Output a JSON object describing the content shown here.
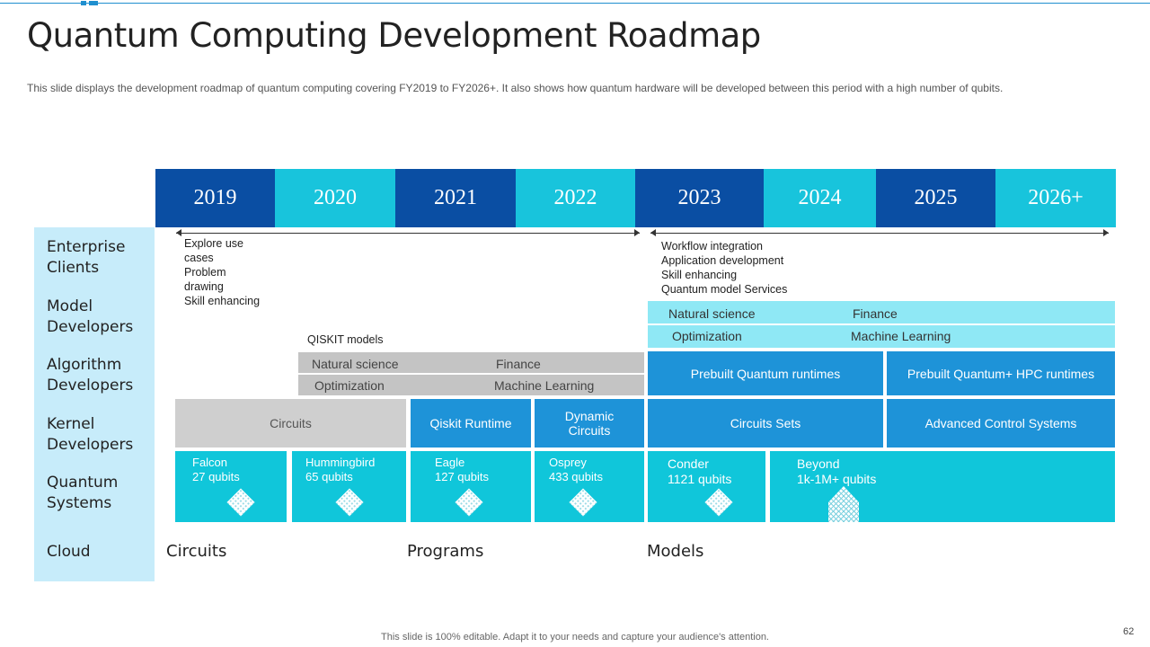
{
  "title": "Quantum Computing Development Roadmap",
  "subtitle": "This slide displays the development  roadmap of quantum computing covering FY2019 to FY2026+. It also shows how quantum hardware  will be developed  between this period with a high number  of qubits.",
  "years": [
    "2019",
    "2020",
    "2021",
    "2022",
    "2023",
    "2024",
    "2025",
    "2026+"
  ],
  "rows": [
    "Enterprise Clients",
    "Model Developers",
    "Algorithm Developers",
    "Kernel Developers",
    "Quantum Systems",
    "Cloud"
  ],
  "enterprise_notes_left": [
    "Explore use",
    "cases",
    "Problem",
    "drawing",
    "Skill enhancing"
  ],
  "enterprise_notes_right": [
    "Workflow integration",
    "Application development",
    "Skill enhancing",
    "Quantum model Services"
  ],
  "qiskit_models": {
    "label": "QISKIT  models",
    "natural_science": "Natural science",
    "finance": "Finance",
    "optimization": "Optimization",
    "machine_learning": "Machine Learning"
  },
  "model_dev_right": {
    "natural_science": "Natural science",
    "finance": "Finance",
    "optimization": "Optimization",
    "machine_learning": "Machine Learning"
  },
  "algorithm_right": [
    "Prebuilt Quantum runtimes",
    "Prebuilt Quantum+ HPC  runtimes"
  ],
  "kernel": {
    "circuits": "Circuits",
    "qiskit_runtime": "Qiskit Runtime",
    "dynamic_circuits": "Dynamic\nCircuits",
    "circuits_sets": "Circuits Sets",
    "advanced_control": "Advanced Control Systems"
  },
  "quantum_systems": [
    {
      "name": "Falcon",
      "qubits": "27 qubits"
    },
    {
      "name": "Hummingbird",
      "qubits": "65 qubits"
    },
    {
      "name": "Eagle",
      "qubits": "127 qubits"
    },
    {
      "name": "Osprey",
      "qubits": "433 qubits"
    },
    {
      "name": "Conder",
      "qubits": "1121 qubits"
    },
    {
      "name": "Beyond",
      "qubits": "1k-1M+ qubits"
    }
  ],
  "bottom_labels": [
    "Circuits",
    "Programs",
    "Models"
  ],
  "footer": "This slide is 100% editable. Adapt it to your needs and capture your audience's attention.",
  "page_number": "62",
  "colors": {
    "dark_blue": "#0a4ea3",
    "cyan": "#18c4dc",
    "blue": "#1e93d8",
    "teal": "#10c6da",
    "light_panel": "#c7ecfa"
  }
}
